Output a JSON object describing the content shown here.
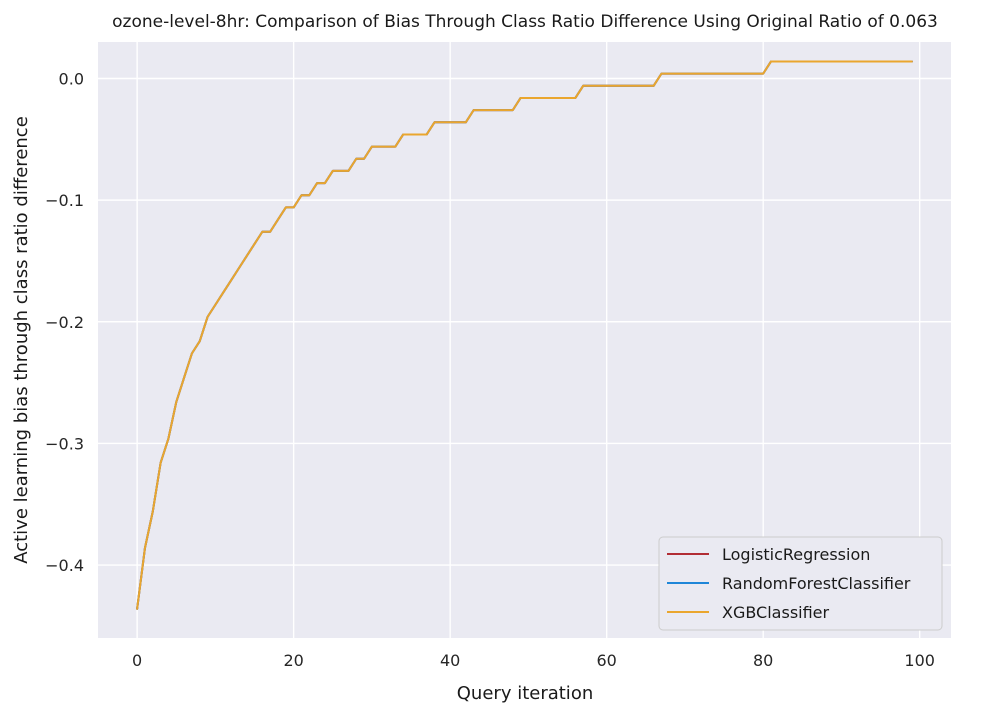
{
  "chart_data": {
    "type": "line",
    "title": "ozone-level-8hr: Comparison of Bias Through Class Ratio Difference Using Original Ratio of 0.063",
    "xlabel": "Query iteration",
    "ylabel": "Active learning bias through class ratio difference",
    "xlim": [
      -5,
      104
    ],
    "ylim": [
      -0.46,
      0.03
    ],
    "xticks": [
      0,
      20,
      40,
      60,
      80,
      100
    ],
    "yticks": [
      0.0,
      -0.1,
      -0.2,
      -0.3,
      -0.4
    ],
    "xtick_labels": [
      "0",
      "20",
      "40",
      "60",
      "80",
      "100"
    ],
    "ytick_labels": [
      "0.0",
      "−0.1",
      "−0.2",
      "−0.3",
      "−0.4"
    ],
    "grid": true,
    "legend_position": "lower-right",
    "background_color": "#eaeaf2",
    "x": [
      0,
      1,
      2,
      3,
      4,
      5,
      6,
      7,
      8,
      9,
      10,
      11,
      12,
      13,
      14,
      15,
      16,
      17,
      18,
      19,
      20,
      21,
      22,
      23,
      24,
      25,
      26,
      27,
      28,
      29,
      30,
      31,
      32,
      33,
      34,
      35,
      36,
      37,
      38,
      39,
      40,
      41,
      42,
      43,
      44,
      45,
      46,
      47,
      48,
      49,
      50,
      51,
      52,
      53,
      54,
      55,
      56,
      57,
      58,
      59,
      60,
      61,
      62,
      63,
      64,
      65,
      66,
      67,
      68,
      69,
      70,
      71,
      72,
      73,
      74,
      75,
      76,
      77,
      78,
      79,
      80,
      81,
      82,
      83,
      84,
      85,
      86,
      87,
      88,
      89,
      90,
      91,
      92,
      93,
      94,
      95,
      96,
      97,
      98,
      99
    ],
    "series": [
      {
        "name": "LogisticRegression",
        "color": "#b22d35",
        "values": [
          -0.436,
          -0.386,
          -0.356,
          -0.316,
          -0.296,
          -0.266,
          -0.246,
          -0.226,
          -0.216,
          -0.196,
          -0.186,
          -0.176,
          -0.166,
          -0.156,
          -0.146,
          -0.136,
          -0.126,
          -0.126,
          -0.116,
          -0.106,
          -0.106,
          -0.096,
          -0.096,
          -0.086,
          -0.086,
          -0.076,
          -0.076,
          -0.076,
          -0.066,
          -0.066,
          -0.056,
          -0.056,
          -0.056,
          -0.056,
          -0.046,
          -0.046,
          -0.046,
          -0.046,
          -0.036,
          -0.036,
          -0.036,
          -0.036,
          -0.036,
          -0.026,
          -0.026,
          -0.026,
          -0.026,
          -0.026,
          -0.026,
          -0.016,
          -0.016,
          -0.016,
          -0.016,
          -0.016,
          -0.016,
          -0.016,
          -0.016,
          -0.006,
          -0.006,
          -0.006,
          -0.006,
          -0.006,
          -0.006,
          -0.006,
          -0.006,
          -0.006,
          -0.006,
          0.004,
          0.004,
          0.004,
          0.004,
          0.004,
          0.004,
          0.004,
          0.004,
          0.004,
          0.004,
          0.004,
          0.004,
          0.004,
          0.004,
          0.014,
          0.014,
          0.014,
          0.014,
          0.014,
          0.014,
          0.014,
          0.014,
          0.014,
          0.014,
          0.014,
          0.014,
          0.014,
          0.014,
          0.014,
          0.014,
          0.014,
          0.014,
          0.014
        ]
      },
      {
        "name": "RandomForestClassifier",
        "color": "#1f86d8",
        "values": [
          -0.436,
          -0.386,
          -0.356,
          -0.316,
          -0.296,
          -0.266,
          -0.246,
          -0.226,
          -0.216,
          -0.196,
          -0.186,
          -0.176,
          -0.166,
          -0.156,
          -0.146,
          -0.136,
          -0.126,
          -0.126,
          -0.116,
          -0.106,
          -0.106,
          -0.096,
          -0.096,
          -0.086,
          -0.086,
          -0.076,
          -0.076,
          -0.076,
          -0.066,
          -0.066,
          -0.056,
          -0.056,
          -0.056,
          -0.056,
          -0.046,
          -0.046,
          -0.046,
          -0.046,
          -0.036,
          -0.036,
          -0.036,
          -0.036,
          -0.036,
          -0.026,
          -0.026,
          -0.026,
          -0.026,
          -0.026,
          -0.026,
          -0.016,
          -0.016,
          -0.016,
          -0.016,
          -0.016,
          -0.016,
          -0.016,
          -0.016,
          -0.006,
          -0.006,
          -0.006,
          -0.006,
          -0.006,
          -0.006,
          -0.006,
          -0.006,
          -0.006,
          -0.006,
          0.004,
          0.004,
          0.004,
          0.004,
          0.004,
          0.004,
          0.004,
          0.004,
          0.004,
          0.004,
          0.004,
          0.004,
          0.004,
          0.004,
          0.014,
          0.014,
          0.014,
          0.014,
          0.014,
          0.014,
          0.014,
          0.014,
          0.014,
          0.014,
          0.014,
          0.014,
          0.014,
          0.014,
          0.014,
          0.014,
          0.014,
          0.014,
          0.014
        ]
      },
      {
        "name": "XGBClassifier",
        "color": "#eaa62e",
        "values": [
          -0.436,
          -0.386,
          -0.356,
          -0.316,
          -0.296,
          -0.266,
          -0.246,
          -0.226,
          -0.216,
          -0.196,
          -0.186,
          -0.176,
          -0.166,
          -0.156,
          -0.146,
          -0.136,
          -0.126,
          -0.126,
          -0.116,
          -0.106,
          -0.106,
          -0.096,
          -0.096,
          -0.086,
          -0.086,
          -0.076,
          -0.076,
          -0.076,
          -0.066,
          -0.066,
          -0.056,
          -0.056,
          -0.056,
          -0.056,
          -0.046,
          -0.046,
          -0.046,
          -0.046,
          -0.036,
          -0.036,
          -0.036,
          -0.036,
          -0.036,
          -0.026,
          -0.026,
          -0.026,
          -0.026,
          -0.026,
          -0.026,
          -0.016,
          -0.016,
          -0.016,
          -0.016,
          -0.016,
          -0.016,
          -0.016,
          -0.016,
          -0.006,
          -0.006,
          -0.006,
          -0.006,
          -0.006,
          -0.006,
          -0.006,
          -0.006,
          -0.006,
          -0.006,
          0.004,
          0.004,
          0.004,
          0.004,
          0.004,
          0.004,
          0.004,
          0.004,
          0.004,
          0.004,
          0.004,
          0.004,
          0.004,
          0.004,
          0.014,
          0.014,
          0.014,
          0.014,
          0.014,
          0.014,
          0.014,
          0.014,
          0.014,
          0.014,
          0.014,
          0.014,
          0.014,
          0.014,
          0.014,
          0.014,
          0.014,
          0.014,
          0.014
        ]
      }
    ]
  }
}
